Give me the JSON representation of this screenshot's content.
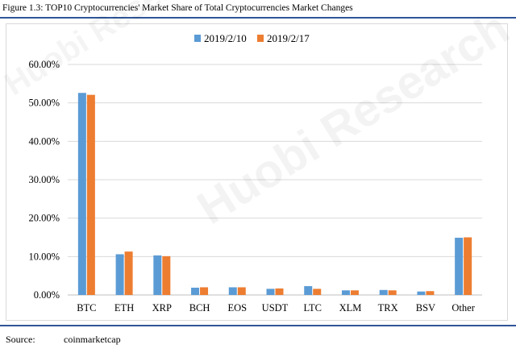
{
  "figure_title": "Figure 1.3: TOP10 Cryptocurrencies' Market Share of Total Cryptocurrencies Market Changes",
  "watermark": "Huobi Research",
  "source": {
    "label": "Source:",
    "value": "coinmarketcap"
  },
  "chart_data": {
    "type": "bar",
    "title": "",
    "xlabel": "",
    "ylabel": "",
    "ylim": [
      0,
      60
    ],
    "y_ticks": [
      "0.00%",
      "10.00%",
      "20.00%",
      "30.00%",
      "40.00%",
      "50.00%",
      "60.00%"
    ],
    "grid": true,
    "legend_position": "top",
    "categories": [
      "BTC",
      "ETH",
      "XRP",
      "BCH",
      "EOS",
      "USDT",
      "LTC",
      "XLM",
      "TRX",
      "BSV",
      "Other"
    ],
    "series": [
      {
        "name": "2019/2/10",
        "color": "#5b9bd5",
        "values": [
          52.6,
          10.6,
          10.3,
          1.9,
          2.0,
          1.6,
          2.3,
          1.2,
          1.3,
          0.9,
          14.9
        ]
      },
      {
        "name": "2019/2/17",
        "color": "#ed7d31",
        "values": [
          52.1,
          11.3,
          10.1,
          2.0,
          2.0,
          1.7,
          1.6,
          1.2,
          1.2,
          1.0,
          15.0
        ]
      }
    ]
  }
}
